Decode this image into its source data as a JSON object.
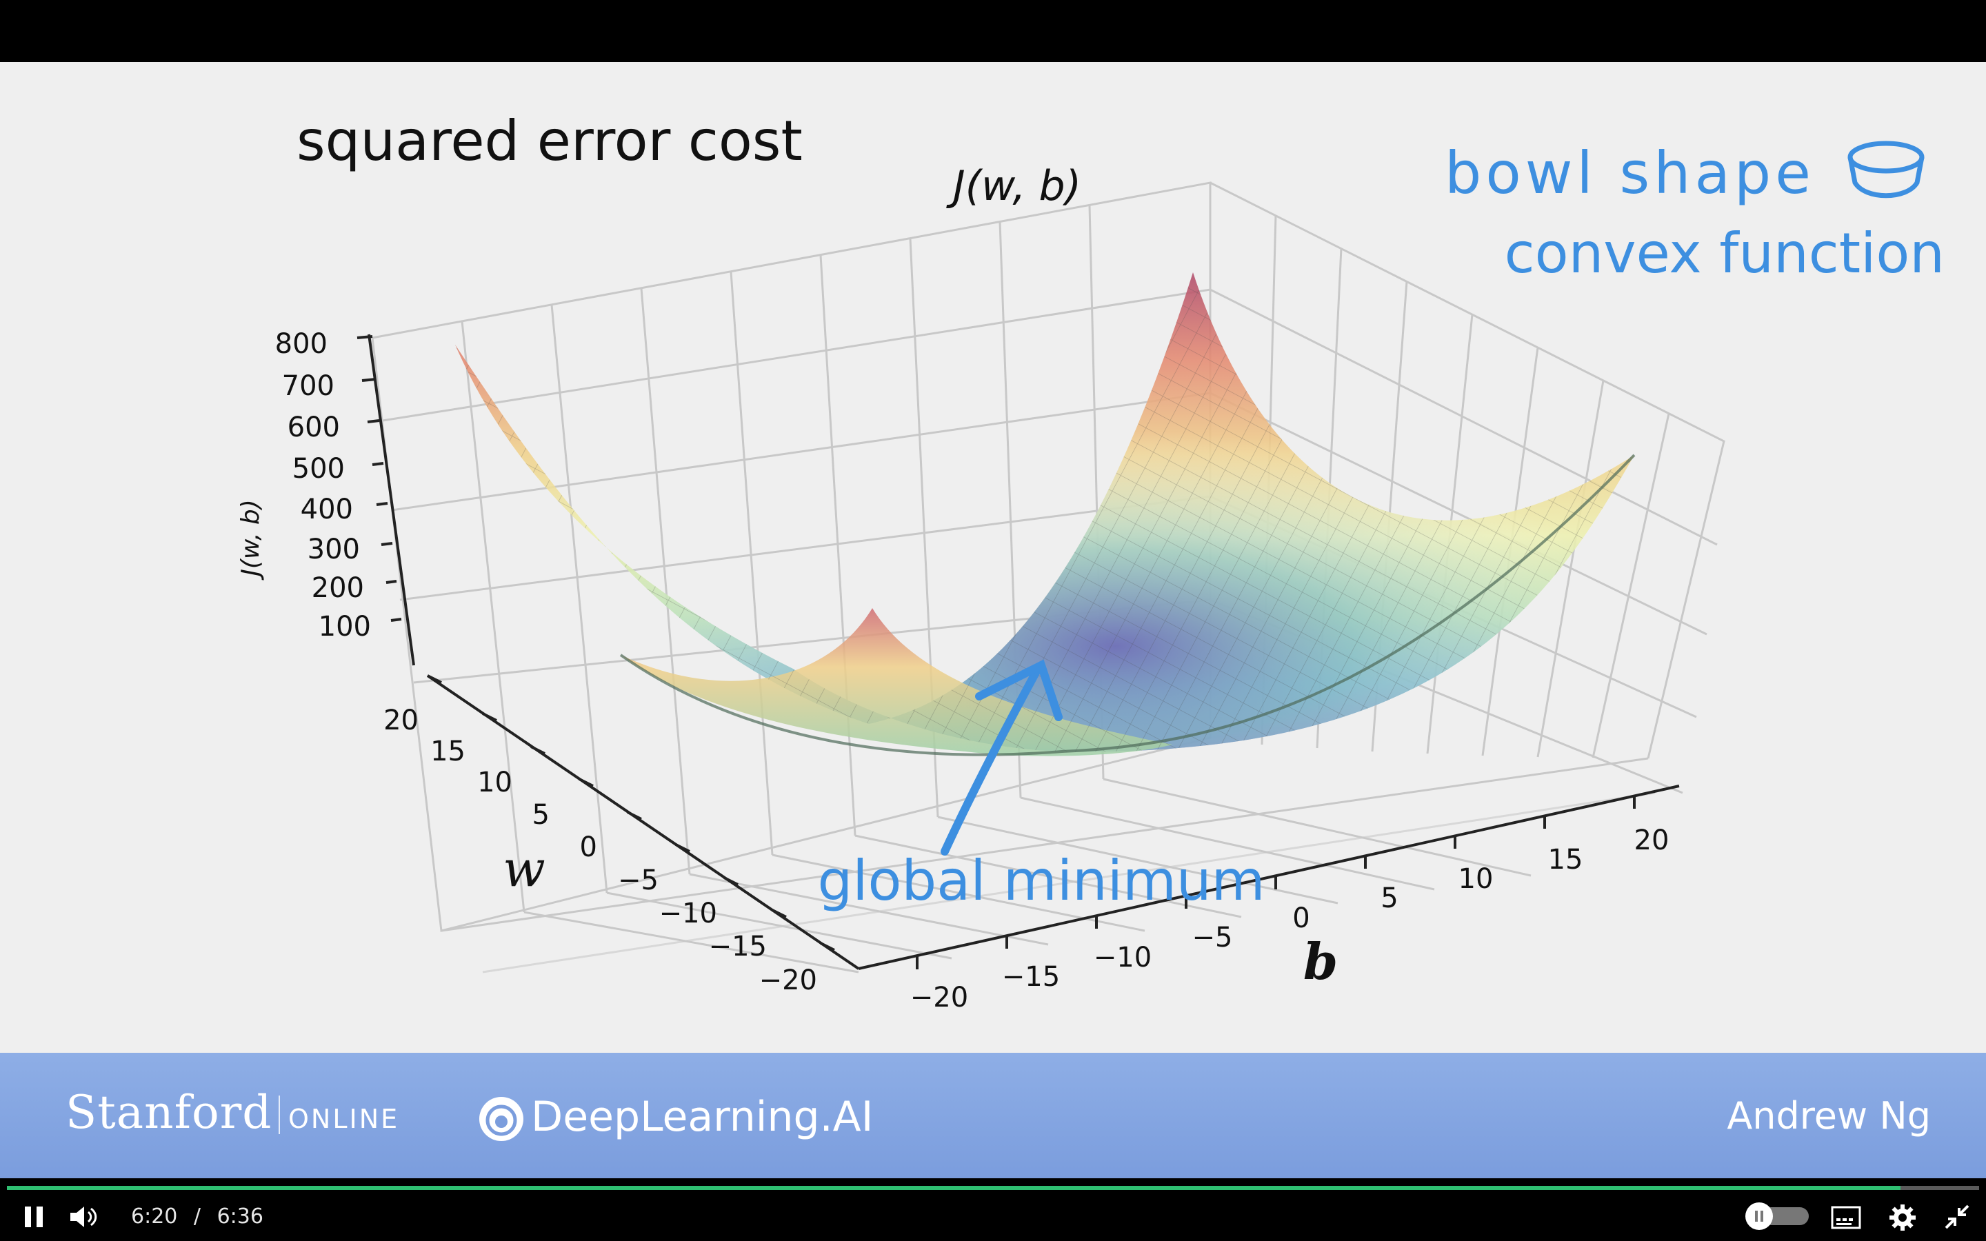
{
  "slide": {
    "title": "squared error cost",
    "z_axis_top_label": "J(w, b)",
    "z_axis_side_label": "J(w, b)",
    "z_ticks": [
      "800",
      "700",
      "600",
      "500",
      "400",
      "300",
      "200",
      "100"
    ],
    "w_axis_label": "w",
    "w_ticks": [
      "20",
      "15",
      "10",
      "5",
      "0",
      "−5",
      "−10",
      "−15",
      "−20"
    ],
    "b_axis_label": "b",
    "b_ticks": [
      "−20",
      "−15",
      "−10",
      "−5",
      "0",
      "5",
      "10",
      "15",
      "20"
    ],
    "annotation_bowl": "bowl shape",
    "annotation_convex": "convex function",
    "annotation_minimum": "global minimum",
    "annotation_color": "#3d8fe0",
    "surface_colormap": "Spectral",
    "chart_data": {
      "type": "surface",
      "title": "squared error cost",
      "xlabel": "w",
      "ylabel": "b",
      "zlabel": "J(w, b)",
      "x_range": [
        -20,
        20
      ],
      "y_range": [
        -20,
        20
      ],
      "z_ticks": [
        100,
        200,
        300,
        400,
        500,
        600,
        700,
        800
      ],
      "grid": true
    }
  },
  "footer": {
    "stanford": "Stanford",
    "online": "ONLINE",
    "deeplearning": "DeepLearning.AI",
    "presenter": "Andrew Ng",
    "background": "#7b9ddd"
  },
  "player": {
    "current_time": "6:20",
    "separator": "/",
    "duration": "6:36",
    "progress": 0.96,
    "progress_color": "#2fbf71",
    "icons": [
      "pause-icon",
      "volume-icon",
      "autoplay-toggle",
      "captions-icon",
      "settings-icon",
      "exit-fullscreen-icon"
    ]
  }
}
